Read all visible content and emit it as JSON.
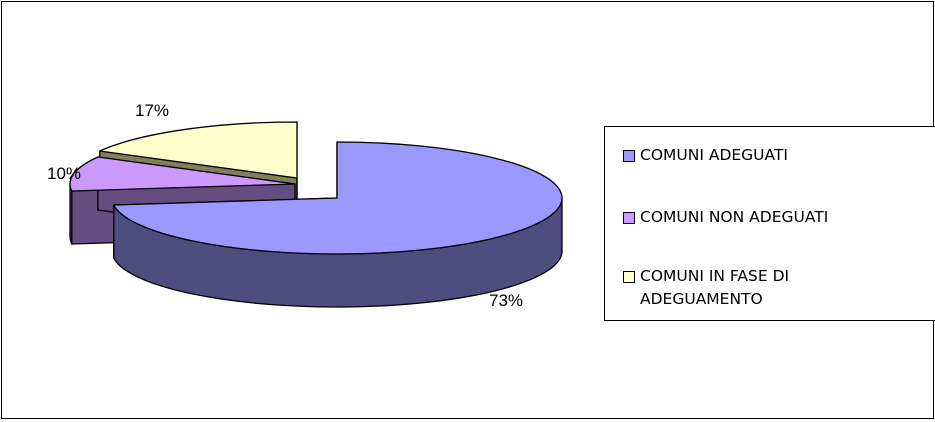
{
  "chart_data": {
    "type": "pie",
    "three_d": true,
    "categories": [
      "COMUNI ADEGUATI",
      "COMUNI NON ADEGUATI",
      "COMUNI IN FASE DI ADEGUAMENTO"
    ],
    "values": [
      73,
      10,
      17
    ],
    "data_labels": [
      "73%",
      "10%",
      "17%"
    ],
    "legend_position": "right",
    "colors": {
      "top": [
        "#9999FF",
        "#CC99FF",
        "#FFFFCC"
      ],
      "side": [
        "#4D4D80",
        "#664D80",
        "#80805F"
      ]
    }
  },
  "legend": {
    "items": [
      {
        "label": "COMUNI ADEGUATI",
        "color": "#9999FF"
      },
      {
        "label": "COMUNI NON ADEGUATI",
        "color": "#CC99FF"
      },
      {
        "label": "COMUNI IN FASE DI\nADEGUAMENTO",
        "color": "#FFFFCC"
      }
    ]
  }
}
